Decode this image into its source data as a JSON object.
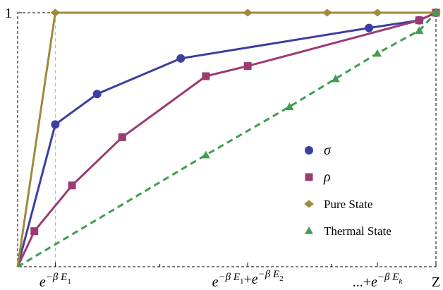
{
  "chart_data": {
    "type": "line",
    "title": "",
    "xlabel": "",
    "ylabel": "",
    "xlim": [
      0,
      1
    ],
    "ylim": [
      0,
      1
    ],
    "frame": "dashed",
    "grid": false,
    "legend_position": "right",
    "series": [
      {
        "name": "σ",
        "color": "#3b3fa0",
        "marker": "circle",
        "line": "solid",
        "x": [
          0,
          0.09,
          0.19,
          0.39,
          0.84,
          0.96,
          1
        ],
        "y": [
          0,
          0.56,
          0.68,
          0.82,
          0.94,
          0.97,
          1
        ]
      },
      {
        "name": "ρ",
        "color": "#9c3a72",
        "marker": "square",
        "line": "solid",
        "x": [
          0,
          0.04,
          0.13,
          0.25,
          0.45,
          0.55,
          0.96,
          1
        ],
        "y": [
          0,
          0.14,
          0.32,
          0.51,
          0.75,
          0.79,
          0.97,
          1
        ]
      },
      {
        "name": "Pure State",
        "color": "#a08a3c",
        "marker": "diamond",
        "line": "solid",
        "x": [
          0,
          0.09,
          0.55,
          0.74,
          0.86,
          1
        ],
        "y": [
          0,
          1,
          1,
          1,
          1,
          1
        ]
      },
      {
        "name": "Thermal State",
        "color": "#3f9e4f",
        "marker": "triangle",
        "line": "dashed",
        "x": [
          0,
          0.45,
          0.65,
          0.76,
          0.86,
          0.96,
          1
        ],
        "y": [
          0,
          0.44,
          0.63,
          0.74,
          0.84,
          0.93,
          1
        ]
      }
    ],
    "x_ticks": [
      {
        "x": 0.09,
        "label": "e^{-β E_1}"
      },
      {
        "x": 0.55,
        "label": "e^{-β E_1}+e^{-β E_2}"
      },
      {
        "x": 0.86,
        "label": "...+e^{-β E_k}"
      },
      {
        "x": 1,
        "label": "Z"
      }
    ],
    "y_ticks": [
      {
        "y": 1,
        "label": "1"
      }
    ],
    "reference_lines": [
      {
        "orientation": "vertical",
        "x": 0.09,
        "style": "dashed",
        "color": "#b0b0b0"
      }
    ]
  }
}
